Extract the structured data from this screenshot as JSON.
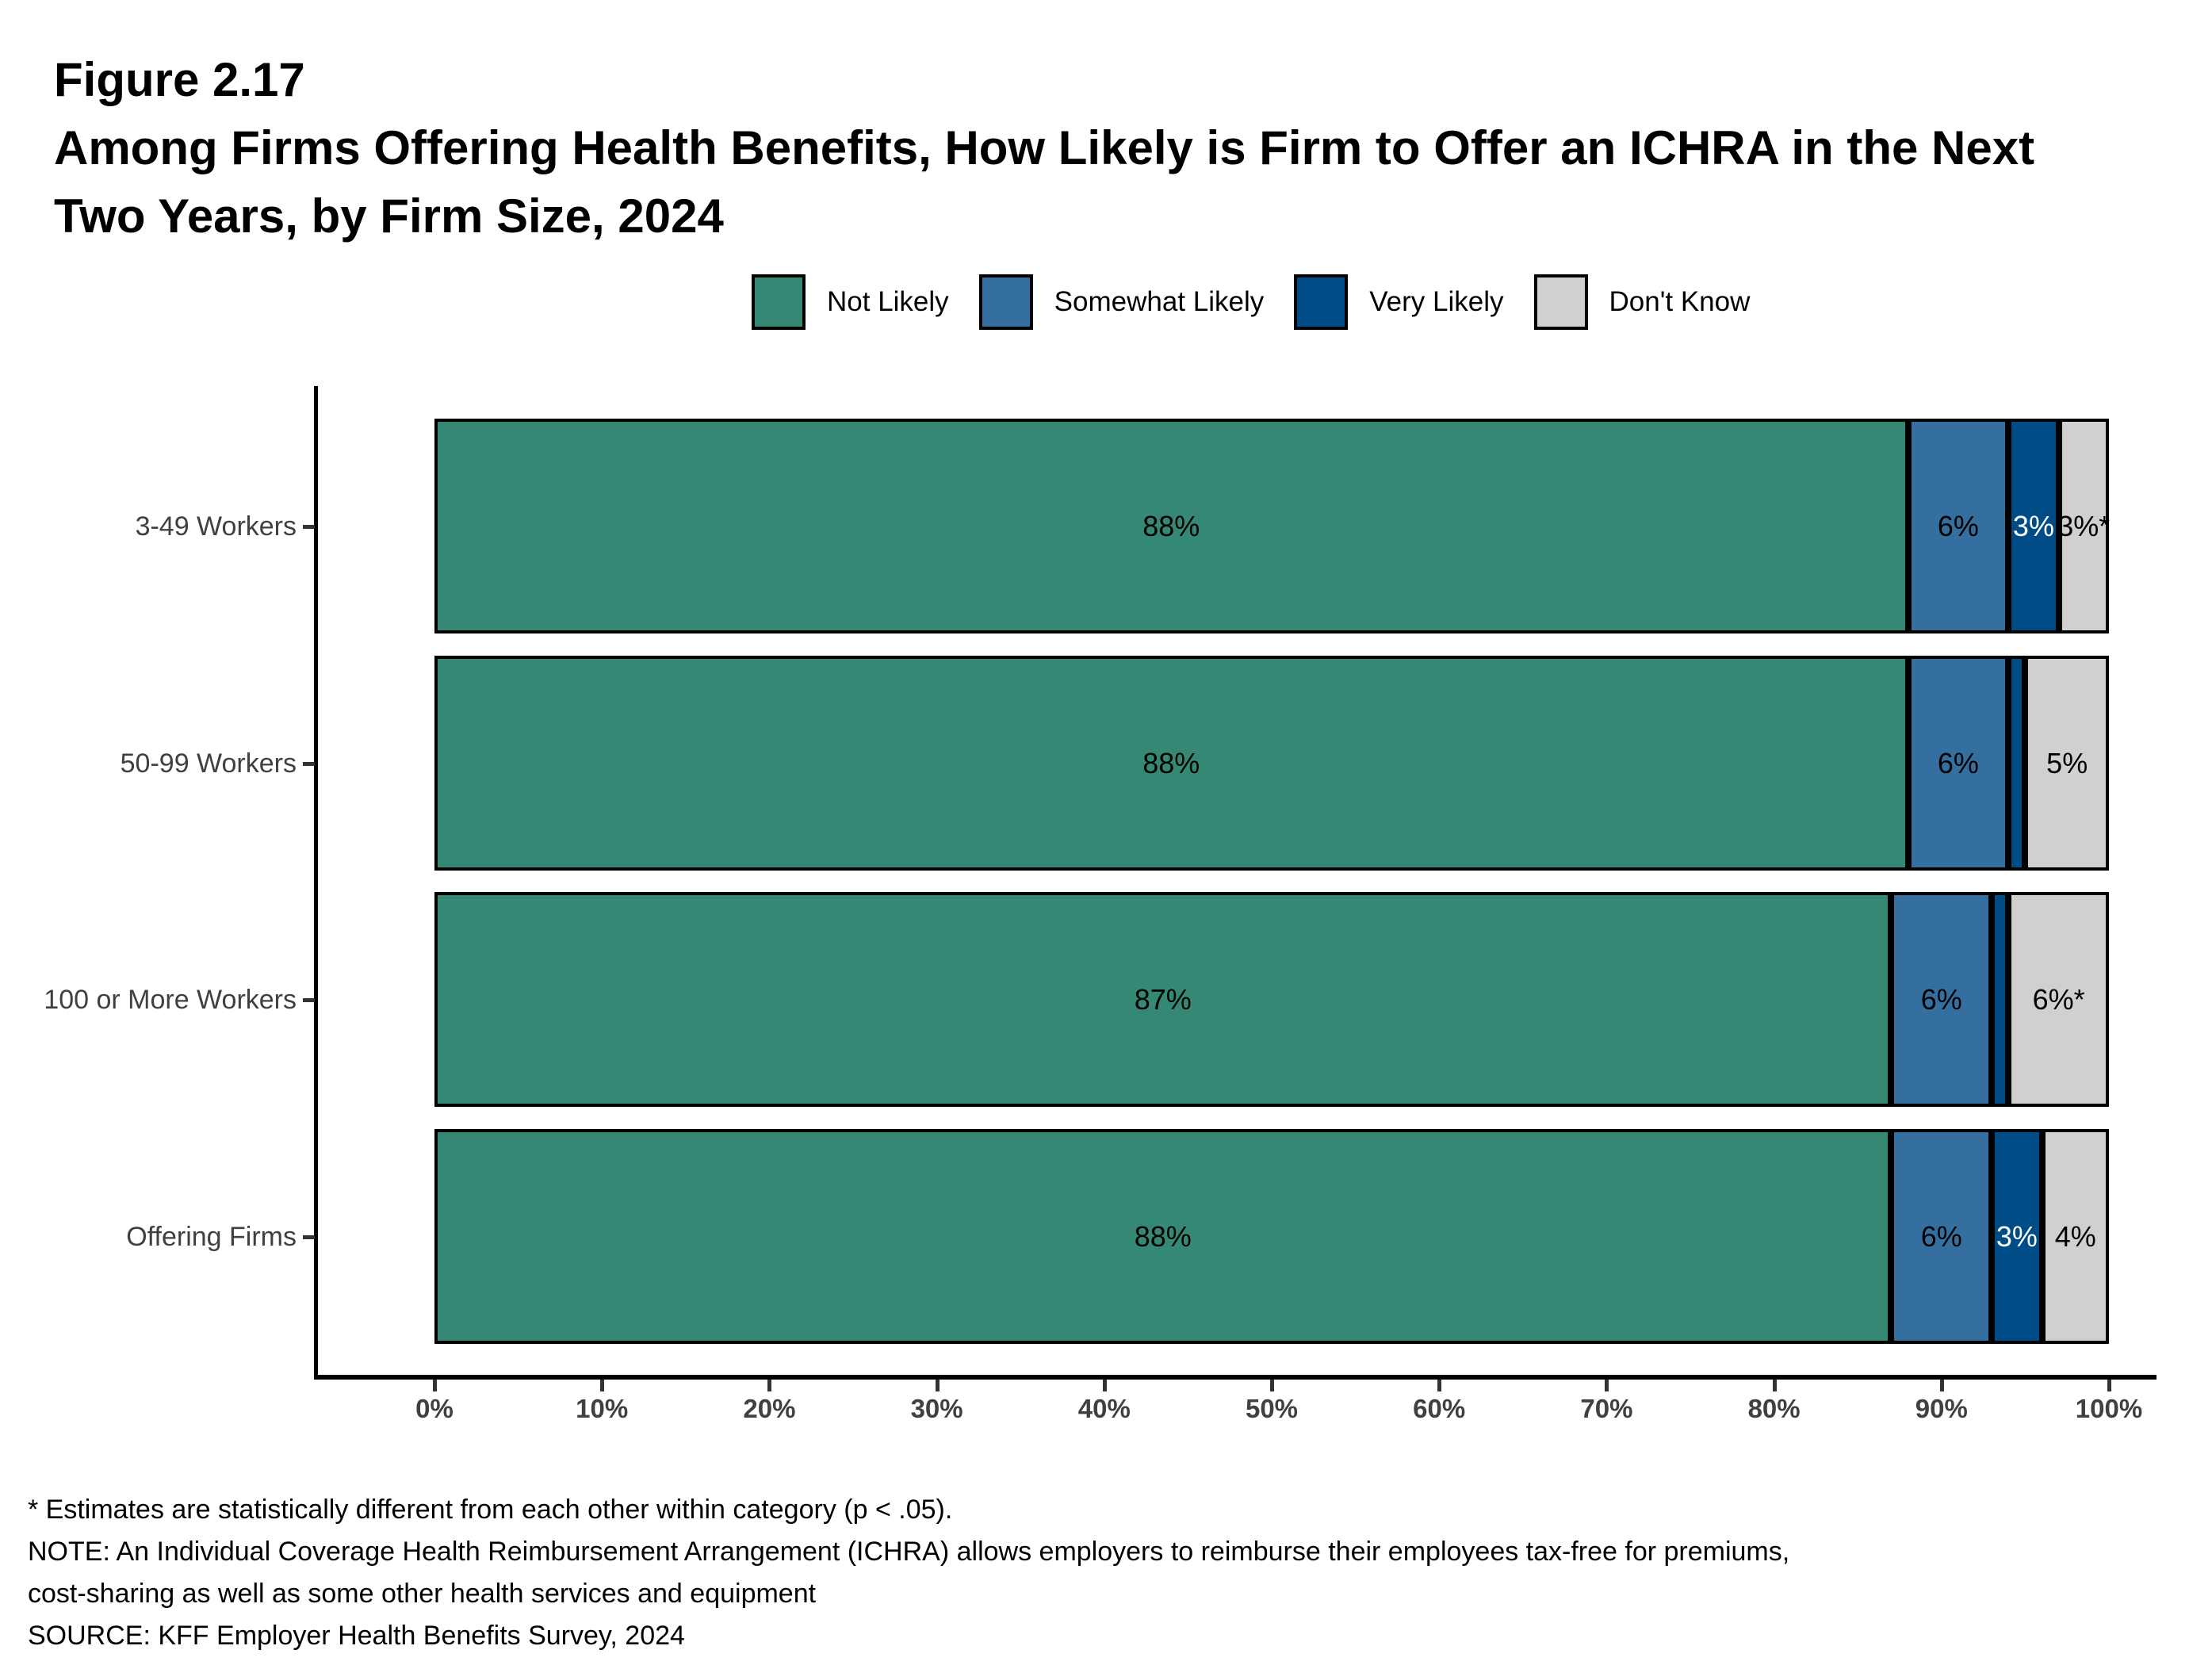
{
  "figure": {
    "number": "Figure 2.17",
    "title_line1": "Among Firms Offering Health Benefits, How Likely is Firm to Offer an ICHRA in the Next",
    "title_line2": "Two Years, by Firm Size, 2024"
  },
  "legend": {
    "items": [
      {
        "label": "Not Likely",
        "color": "#358874"
      },
      {
        "label": "Somewhat Likely",
        "color": "#356F9F"
      },
      {
        "label": "Very Likely",
        "color": "#004C87"
      },
      {
        "label": "Don't Know",
        "color": "#D0D0D0"
      }
    ]
  },
  "chart_data": {
    "type": "bar",
    "orientation": "horizontal_stacked",
    "title": "Among Firms Offering Health Benefits, How Likely is Firm to Offer an ICHRA in the Next Two Years, by Firm Size, 2024",
    "categories": [
      "3-49 Workers",
      "50-99 Workers",
      "100 or More Workers",
      "Offering Firms"
    ],
    "series_names": [
      "Not Likely",
      "Somewhat Likely",
      "Very Likely",
      "Don't Know"
    ],
    "legend_position": "top",
    "xlim": [
      0,
      100
    ],
    "x_axis": {
      "tick_values": [
        0,
        10,
        20,
        30,
        40,
        50,
        60,
        70,
        80,
        90,
        100
      ],
      "tick_labels": [
        "0%",
        "10%",
        "20%",
        "30%",
        "40%",
        "50%",
        "60%",
        "70%",
        "80%",
        "90%",
        "100%"
      ]
    },
    "rows": [
      {
        "category": "3-49 Workers",
        "segments": [
          {
            "series": "Not Likely",
            "label": "88%",
            "value": 88,
            "width_pct": 88,
            "color": "#358874",
            "label_color": "#000000"
          },
          {
            "series": "Somewhat Likely",
            "label": "6%",
            "value": 6,
            "width_pct": 6,
            "color": "#356F9F",
            "label_color": "#000000"
          },
          {
            "series": "Very Likely",
            "label": "3%",
            "value": 3,
            "width_pct": 3,
            "color": "#004C87",
            "label_color": "#FFFFFF"
          },
          {
            "series": "Don't Know",
            "label": "3%*",
            "value": 3,
            "width_pct": 3,
            "color": "#D0D0D0",
            "label_color": "#000000"
          }
        ]
      },
      {
        "category": "50-99 Workers",
        "segments": [
          {
            "series": "Not Likely",
            "label": "88%",
            "value": 88,
            "width_pct": 88,
            "color": "#358874",
            "label_color": "#000000"
          },
          {
            "series": "Somewhat Likely",
            "label": "6%",
            "value": 6,
            "width_pct": 6,
            "color": "#356F9F",
            "label_color": "#000000"
          },
          {
            "series": "Very Likely",
            "label": "",
            "value": 1,
            "width_pct": 1,
            "color": "#004C87",
            "label_color": "#FFFFFF"
          },
          {
            "series": "Don't Know",
            "label": "5%",
            "value": 5,
            "width_pct": 5,
            "color": "#D0D0D0",
            "label_color": "#000000"
          }
        ]
      },
      {
        "category": "100 or More Workers",
        "segments": [
          {
            "series": "Not Likely",
            "label": "87%",
            "value": 87,
            "width_pct": 87,
            "color": "#358874",
            "label_color": "#000000"
          },
          {
            "series": "Somewhat Likely",
            "label": "6%",
            "value": 6,
            "width_pct": 6,
            "color": "#356F9F",
            "label_color": "#000000"
          },
          {
            "series": "Very Likely",
            "label": "",
            "value": 1,
            "width_pct": 1,
            "color": "#004C87",
            "label_color": "#FFFFFF"
          },
          {
            "series": "Don't Know",
            "label": "6%*",
            "value": 6,
            "width_pct": 6,
            "color": "#D0D0D0",
            "label_color": "#000000"
          }
        ]
      },
      {
        "category": "Offering Firms",
        "segments": [
          {
            "series": "Not Likely",
            "label": "88%",
            "value": 88,
            "width_pct": 87,
            "color": "#358874",
            "label_color": "#000000"
          },
          {
            "series": "Somewhat Likely",
            "label": "6%",
            "value": 6,
            "width_pct": 6,
            "color": "#356F9F",
            "label_color": "#000000"
          },
          {
            "series": "Very Likely",
            "label": "3%",
            "value": 3,
            "width_pct": 3,
            "color": "#004C87",
            "label_color": "#FFFFFF"
          },
          {
            "series": "Don't Know",
            "label": "4%",
            "value": 4,
            "width_pct": 4,
            "color": "#D0D0D0",
            "label_color": "#000000"
          }
        ]
      }
    ]
  },
  "footnotes": {
    "line1": "* Estimates are statistically different from each other within category (p < .05).",
    "line2": "NOTE: An Individual Coverage Health Reimbursement Arrangement (ICHRA) allows employers to reimburse their employees tax-free for premiums,",
    "line3": "cost-sharing as well as some other health services and equipment",
    "line4": "SOURCE: KFF Employer Health Benefits Survey, 2024"
  }
}
